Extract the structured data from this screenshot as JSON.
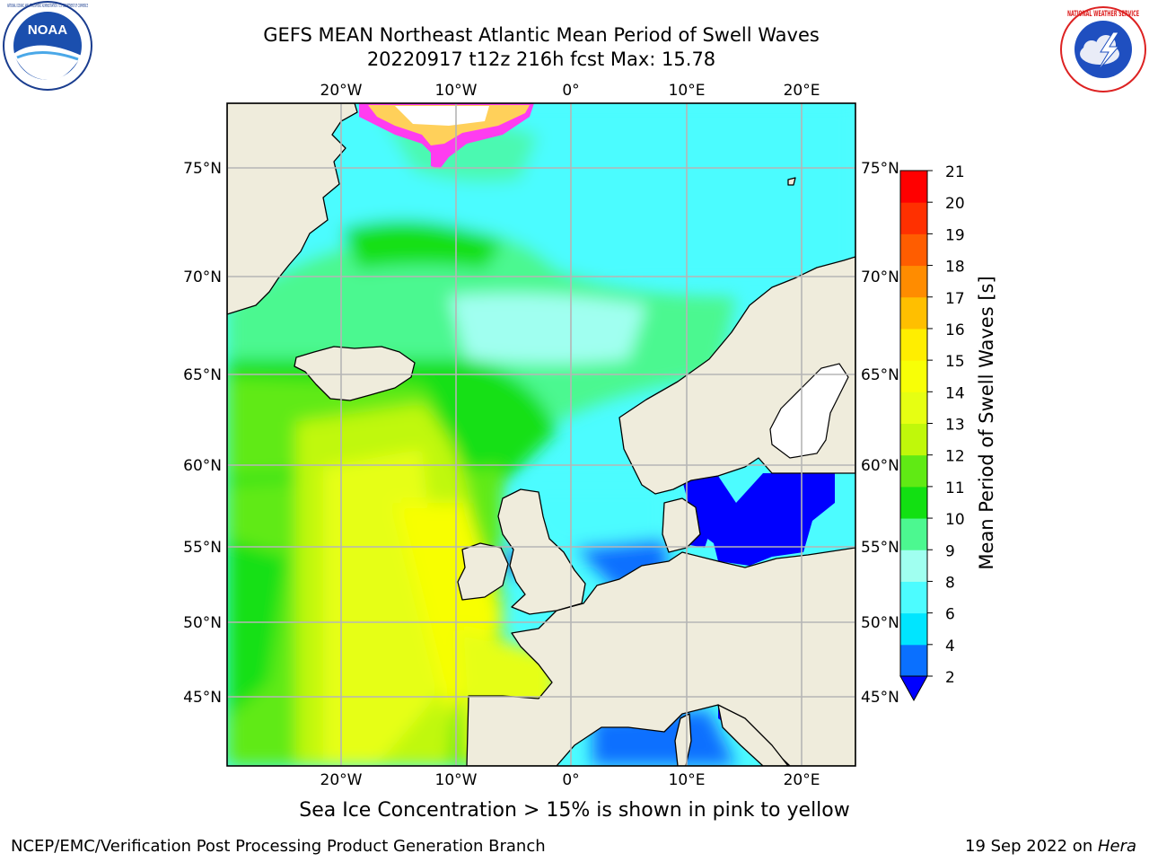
{
  "header": {
    "title_line1": "GEFS MEAN Northeast Atlantic Mean Period of Swell Waves",
    "title_line2": "20220917 t12z 216h fcst   Max: 15.78"
  },
  "logos": {
    "left": "NOAA",
    "left_ring_text": "NATIONAL OCEANIC AND ATMOSPHERIC ADMINISTRATION · U.S. DEPARTMENT OF COMMERCE",
    "right_ring_text": "NATIONAL WEATHER SERVICE"
  },
  "map": {
    "lon_labels": [
      "20°W",
      "10°W",
      "0°",
      "10°E",
      "20°E"
    ],
    "lat_labels": [
      "75°N",
      "70°N",
      "65°N",
      "60°N",
      "55°N",
      "50°N",
      "45°N"
    ],
    "colors": {
      "land": "#efecdc",
      "grid": "#b5b5b5",
      "coast": "#000000"
    }
  },
  "colorbar": {
    "label": "Mean Period of Swell Waves [s]",
    "ticks": [
      "2",
      "4",
      "6",
      "8",
      "9",
      "10",
      "11",
      "12",
      "13",
      "14",
      "15",
      "16",
      "17",
      "18",
      "19",
      "20",
      "21"
    ],
    "colors": [
      "#0a70ff",
      "#00e5ff",
      "#4cfcff",
      "#a0fff0",
      "#4cf890",
      "#12e012",
      "#60ea14",
      "#c0f80a",
      "#e6ff12",
      "#f8ff06",
      "#ffee00",
      "#ffbf00",
      "#ff8c00",
      "#ff5d00",
      "#ff3000",
      "#ff0000"
    ],
    "under_color": "#0000ff"
  },
  "notes": {
    "sea_ice": "Sea Ice Concentration > 15% is shown in pink to yellow"
  },
  "footer": {
    "left": "NCEP/EMC/Verification Post Processing Product Generation Branch",
    "right_prefix": "19 Sep 2022 on ",
    "right_machine": "Hera"
  }
}
